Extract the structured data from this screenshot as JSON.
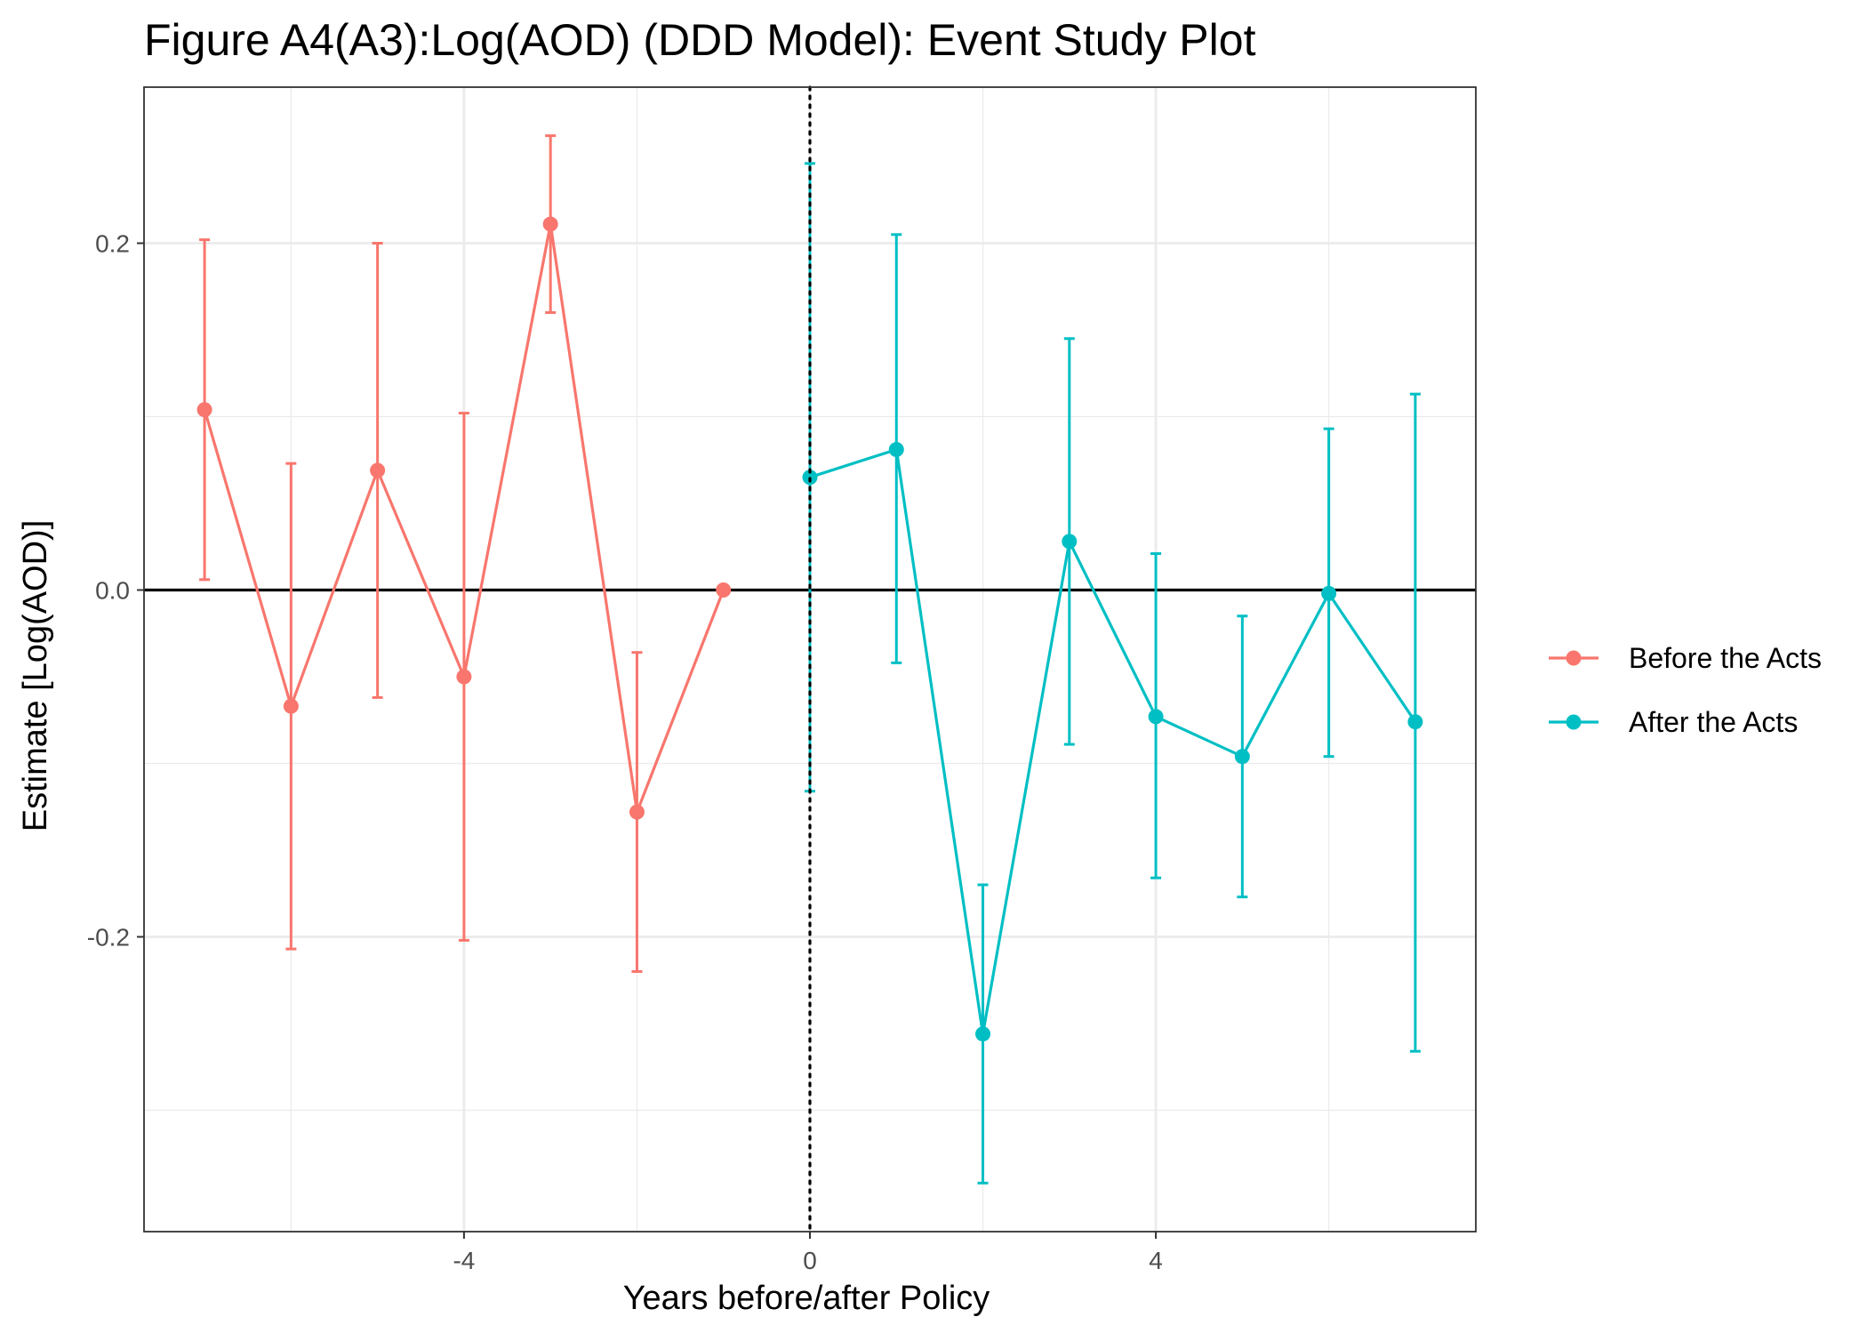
{
  "chart_data": {
    "type": "line",
    "title": "Figure A4(A3):Log(AOD) (DDD Model): Event Study Plot",
    "xlabel": "Years before/after Policy",
    "ylabel": "Estimate [Log(AOD)]",
    "xlim": [
      -7.7,
      7.7
    ],
    "ylim": [
      -0.37,
      0.29
    ],
    "x_ticks": [
      -4,
      0,
      4
    ],
    "x_tick_labels": [
      "-4",
      "0",
      "4"
    ],
    "y_ticks": [
      -0.2,
      0.0,
      0.2
    ],
    "y_tick_labels": [
      "-0.2",
      "0.0",
      "0.2"
    ],
    "x_minor_ticks": [
      -6,
      -2,
      2,
      6
    ],
    "y_minor_ticks": [
      -0.3,
      -0.1,
      0.1
    ],
    "grid": true,
    "legend_position": "right",
    "reference_lines": [
      {
        "orientation": "horizontal",
        "value": 0,
        "style": "solid"
      },
      {
        "orientation": "vertical",
        "value": 0,
        "style": "dotted"
      }
    ],
    "series": [
      {
        "name": "Before the Acts",
        "color": "#F8766D",
        "points": [
          {
            "x": -7,
            "y": 0.104,
            "ci_low": 0.006,
            "ci_high": 0.202
          },
          {
            "x": -6,
            "y": -0.067,
            "ci_low": -0.207,
            "ci_high": 0.073
          },
          {
            "x": -5,
            "y": 0.069,
            "ci_low": -0.062,
            "ci_high": 0.2
          },
          {
            "x": -4,
            "y": -0.05,
            "ci_low": -0.202,
            "ci_high": 0.102
          },
          {
            "x": -3,
            "y": 0.211,
            "ci_low": 0.16,
            "ci_high": 0.262
          },
          {
            "x": -2,
            "y": -0.128,
            "ci_low": -0.22,
            "ci_high": -0.036
          },
          {
            "x": -1,
            "y": 0.0,
            "ci_low": null,
            "ci_high": null
          }
        ]
      },
      {
        "name": "After the Acts",
        "color": "#00BFC4",
        "points": [
          {
            "x": 0,
            "y": 0.065,
            "ci_low": -0.116,
            "ci_high": 0.246
          },
          {
            "x": 1,
            "y": 0.081,
            "ci_low": -0.042,
            "ci_high": 0.205
          },
          {
            "x": 2,
            "y": -0.256,
            "ci_low": -0.342,
            "ci_high": -0.17
          },
          {
            "x": 3,
            "y": 0.028,
            "ci_low": -0.089,
            "ci_high": 0.145
          },
          {
            "x": 4,
            "y": -0.073,
            "ci_low": -0.166,
            "ci_high": 0.021
          },
          {
            "x": 5,
            "y": -0.096,
            "ci_low": -0.177,
            "ci_high": -0.015
          },
          {
            "x": 6,
            "y": -0.002,
            "ci_low": -0.096,
            "ci_high": 0.093
          },
          {
            "x": 7,
            "y": -0.076,
            "ci_low": -0.266,
            "ci_high": 0.113
          }
        ]
      }
    ]
  }
}
